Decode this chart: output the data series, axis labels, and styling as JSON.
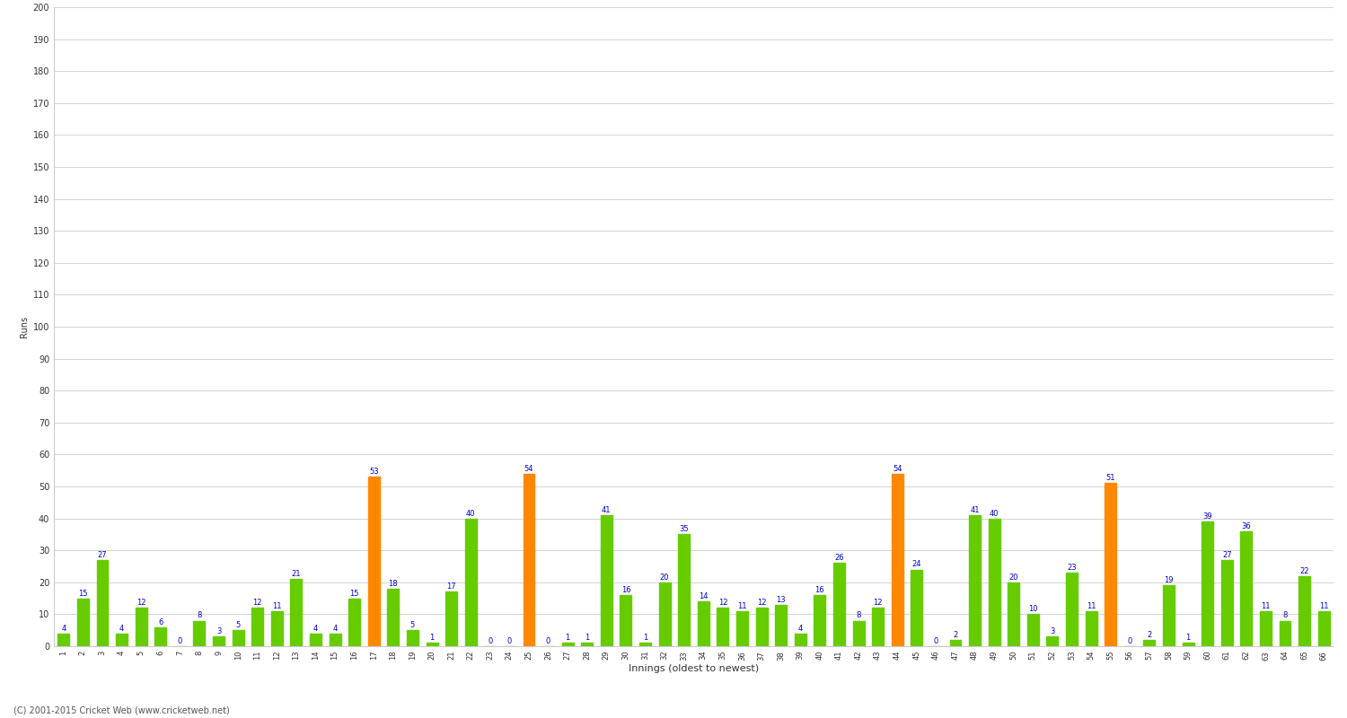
{
  "xlabel": "Innings (oldest to newest)",
  "ylabel": "Runs",
  "values": [
    4,
    15,
    27,
    4,
    12,
    6,
    0,
    8,
    3,
    5,
    12,
    11,
    21,
    4,
    4,
    15,
    53,
    18,
    5,
    1,
    17,
    40,
    0,
    0,
    54,
    0,
    1,
    1,
    41,
    16,
    1,
    20,
    35,
    14,
    12,
    11,
    12,
    13,
    4,
    16,
    26,
    8,
    12,
    54,
    24,
    0,
    2,
    41,
    40,
    20,
    10,
    3,
    23,
    11,
    51,
    0,
    2,
    19,
    1,
    39,
    27,
    36,
    11,
    8,
    22,
    11
  ],
  "is_orange": [
    false,
    false,
    false,
    false,
    false,
    false,
    false,
    false,
    false,
    false,
    false,
    false,
    false,
    false,
    false,
    false,
    true,
    false,
    false,
    false,
    false,
    false,
    false,
    false,
    true,
    false,
    false,
    false,
    false,
    false,
    false,
    false,
    false,
    false,
    false,
    false,
    false,
    false,
    false,
    false,
    false,
    false,
    false,
    true,
    false,
    false,
    false,
    false,
    false,
    false,
    false,
    false,
    false,
    false,
    true,
    false,
    false,
    false,
    false,
    false,
    false,
    false,
    false,
    false,
    false,
    false
  ],
  "green_color": "#66cc00",
  "orange_color": "#ff8800",
  "background_color": "#ffffff",
  "grid_color": "#cccccc",
  "label_color": "#0000cc",
  "ylim": [
    0,
    200
  ],
  "yticks": [
    0,
    10,
    20,
    30,
    40,
    50,
    60,
    70,
    80,
    90,
    100,
    110,
    120,
    130,
    140,
    150,
    160,
    170,
    180,
    190,
    200
  ],
  "figsize": [
    15,
    8
  ],
  "dpi": 100,
  "footer": "(C) 2001-2015 Cricket Web (www.cricketweb.net)"
}
